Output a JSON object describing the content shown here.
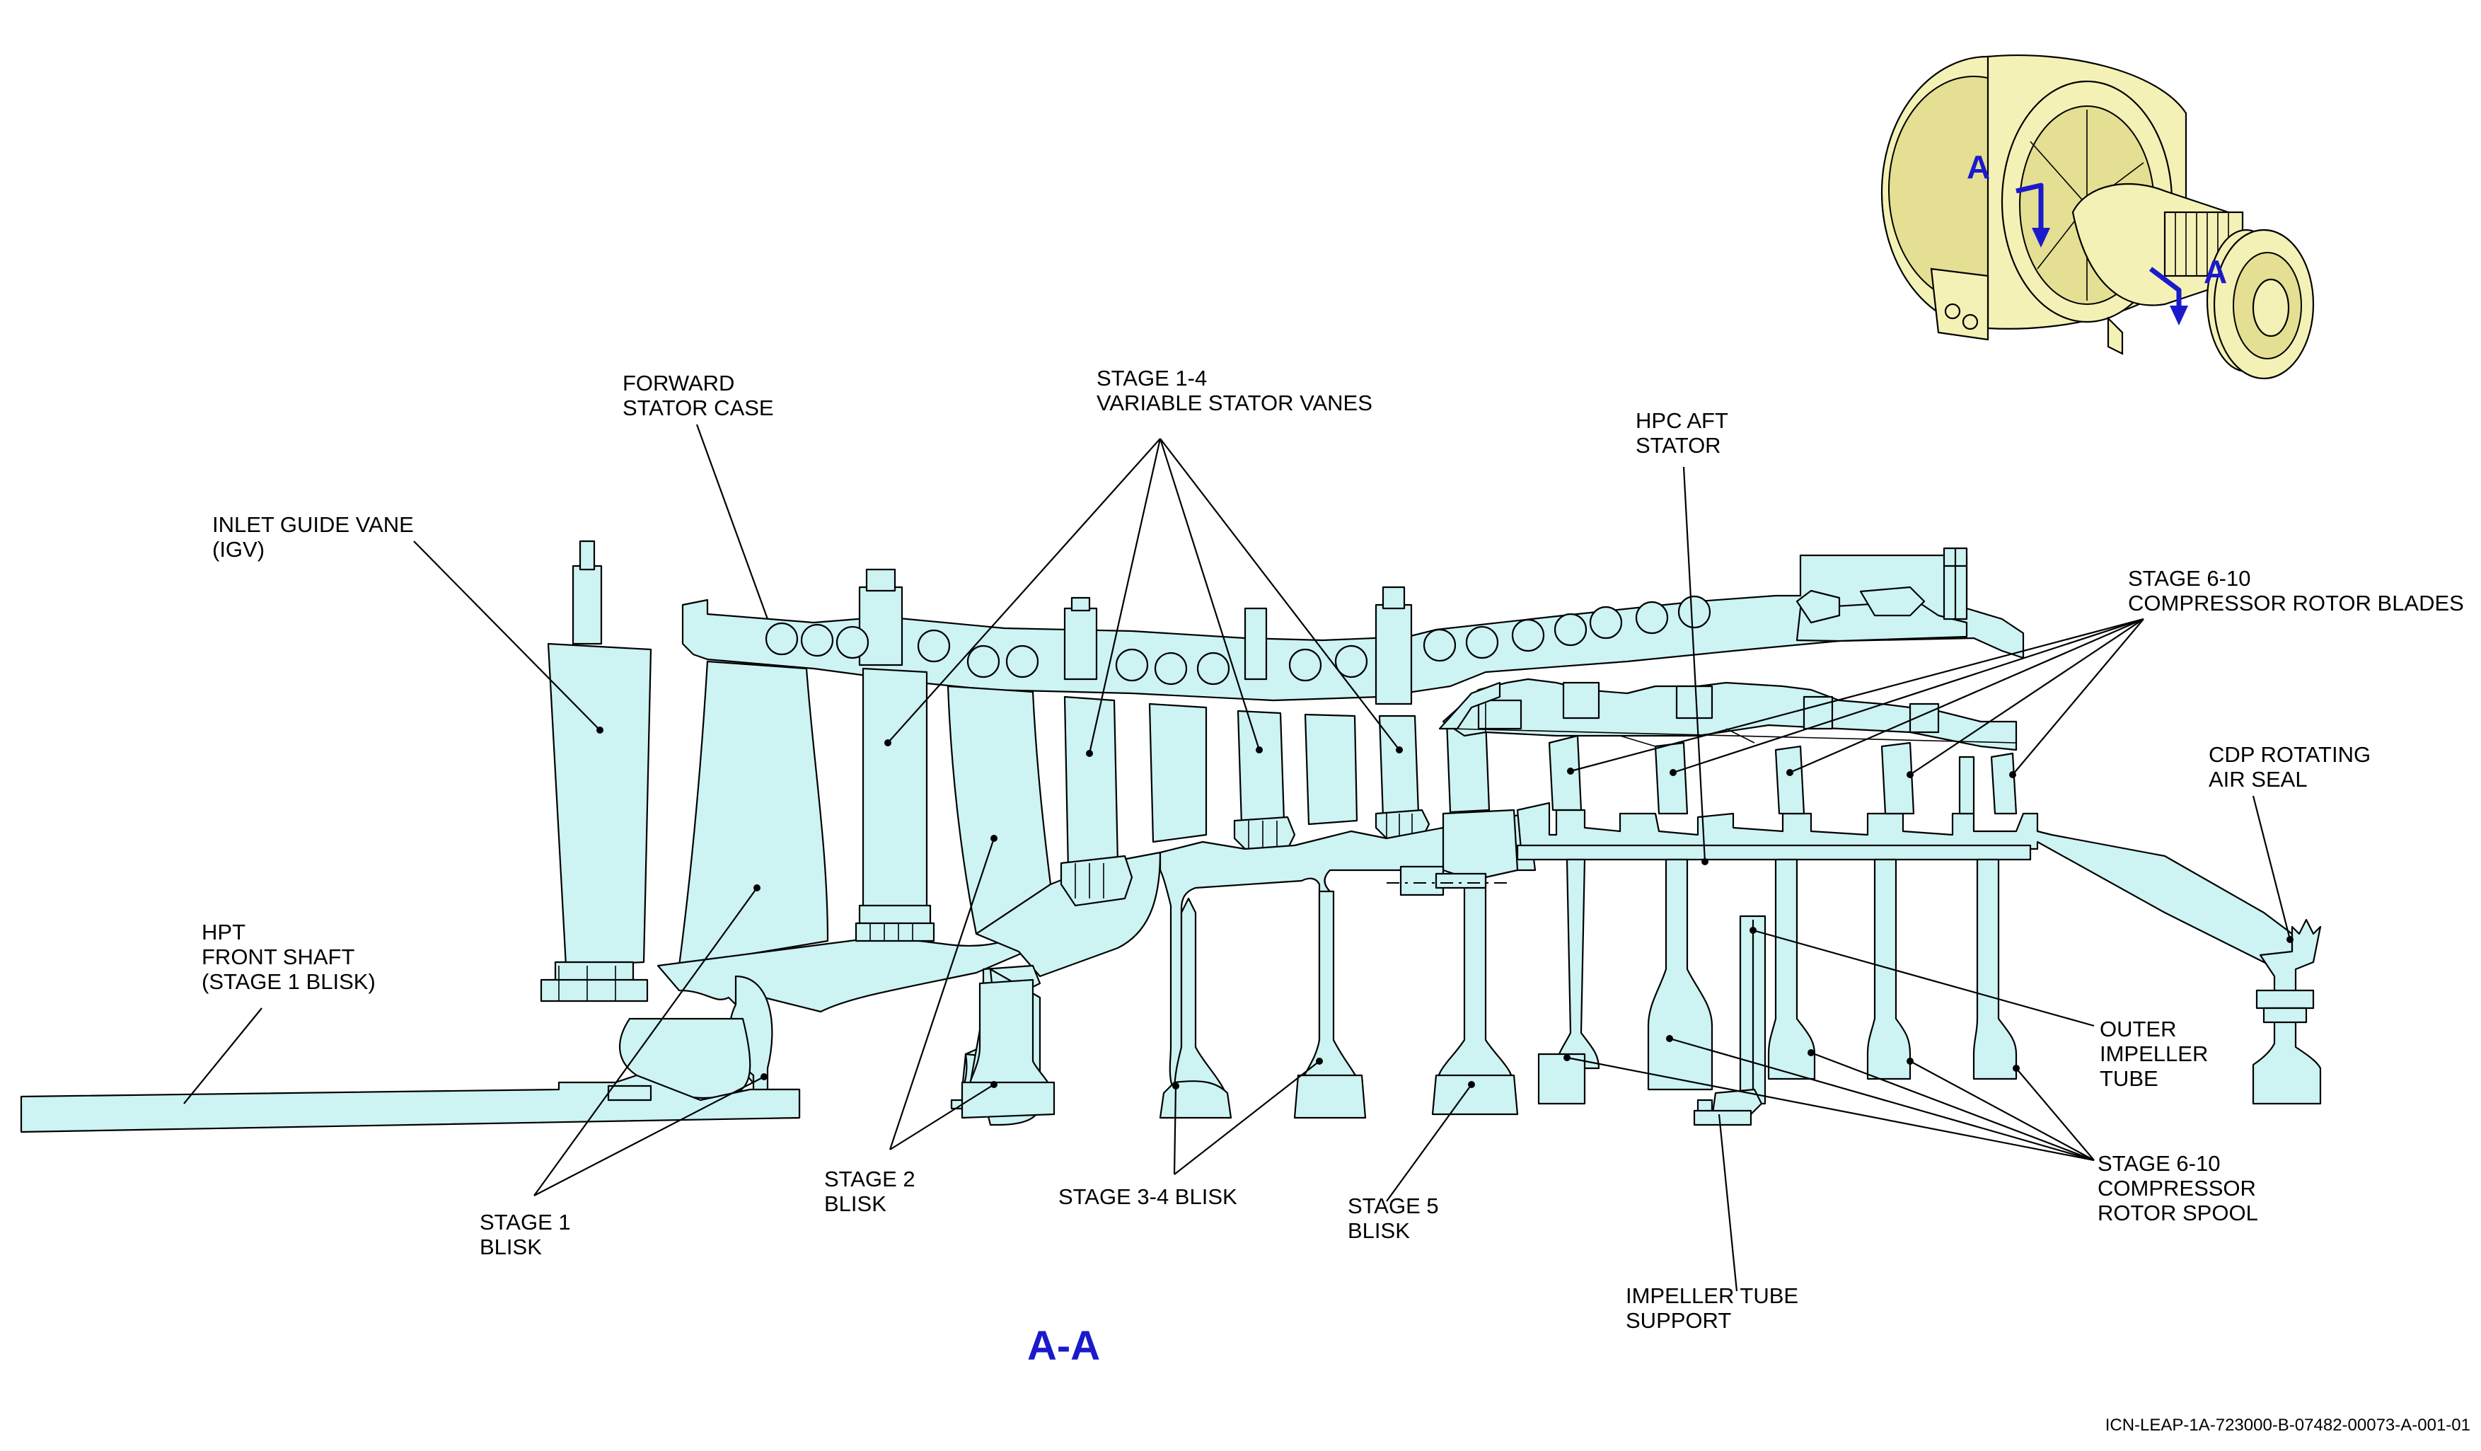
{
  "title": "A-A",
  "view_letters": [
    "A",
    "A"
  ],
  "document_code": "ICN-LEAP-1A-723000-B-07482-00073-A-001-01",
  "labels": {
    "forward_stator_case": [
      "FORWARD",
      "STATOR CASE"
    ],
    "variable_stator_vanes": [
      "STAGE 1-4",
      "VARIABLE STATOR VANES"
    ],
    "hpc_aft_stator": [
      "HPC AFT",
      "STATOR"
    ],
    "inlet_guide_vane": [
      "INLET GUIDE VANE",
      "(IGV)"
    ],
    "rotor_blades": [
      "STAGE 6-10",
      "COMPRESSOR ROTOR BLADES"
    ],
    "cdp_seal": [
      "CDP ROTATING",
      "AIR SEAL"
    ],
    "hpt_front_shaft": [
      "HPT",
      "FRONT SHAFT",
      "(STAGE 1 BLISK)"
    ],
    "outer_impeller_tube": [
      "OUTER",
      "IMPELLER",
      "TUBE"
    ],
    "stage1_blisk": [
      "STAGE 1",
      "BLISK"
    ],
    "stage2_blisk": [
      "STAGE 2",
      "BLISK"
    ],
    "stage34_blisk": [
      "STAGE 3-4 BLISK"
    ],
    "stage5_blisk": [
      "STAGE 5",
      "BLISK"
    ],
    "rotor_spool": [
      "STAGE 6-10",
      "COMPRESSOR",
      "ROTOR SPOOL"
    ],
    "impeller_support": [
      "IMPELLER TUBE",
      "SUPPORT"
    ]
  },
  "colors": {
    "part_fill": "#cdf3f3",
    "engine_fill": "#f4f1b6",
    "section_blue": "#1a1acc"
  }
}
